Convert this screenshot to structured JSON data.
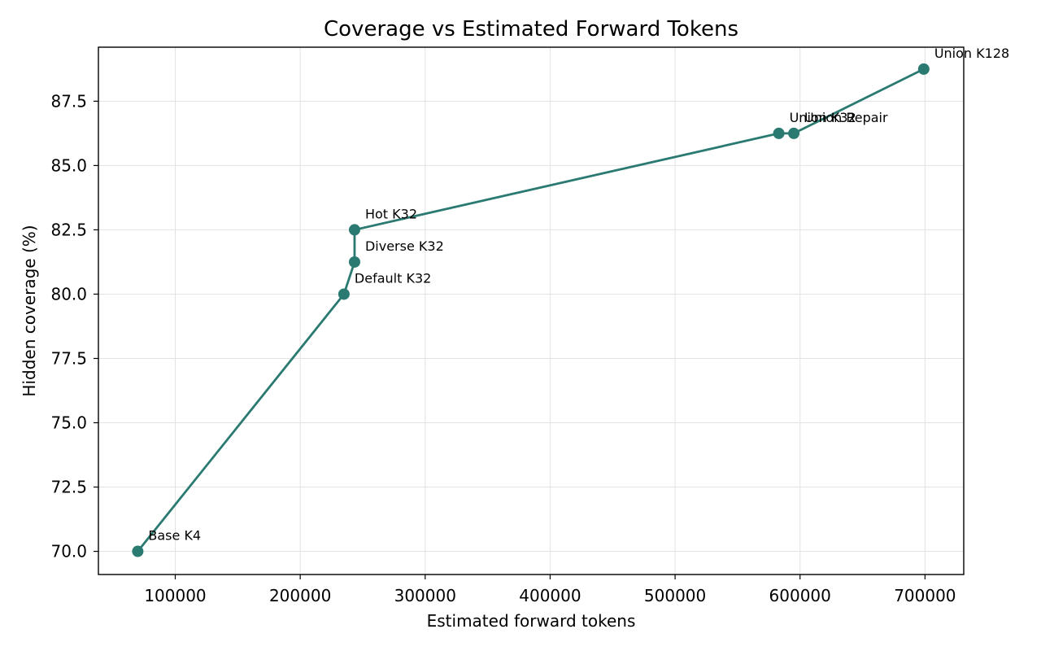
{
  "chart_data": {
    "type": "line",
    "title": "Coverage vs Estimated Forward Tokens",
    "xlabel": "Estimated forward tokens",
    "ylabel": "Hidden coverage (%)",
    "xlim": [
      38500,
      731000
    ],
    "ylim": [
      69.1,
      89.6
    ],
    "xticks": [
      {
        "value": 100000,
        "label": "100000"
      },
      {
        "value": 200000,
        "label": "200000"
      },
      {
        "value": 300000,
        "label": "300000"
      },
      {
        "value": 400000,
        "label": "400000"
      },
      {
        "value": 500000,
        "label": "500000"
      },
      {
        "value": 600000,
        "label": "600000"
      },
      {
        "value": 700000,
        "label": "700000"
      }
    ],
    "yticks": [
      {
        "value": 70.0,
        "label": "70.0"
      },
      {
        "value": 72.5,
        "label": "72.5"
      },
      {
        "value": 75.0,
        "label": "75.0"
      },
      {
        "value": 77.5,
        "label": "77.5"
      },
      {
        "value": 80.0,
        "label": "80.0"
      },
      {
        "value": 82.5,
        "label": "82.5"
      },
      {
        "value": 85.0,
        "label": "85.0"
      },
      {
        "value": 87.5,
        "label": "87.5"
      }
    ],
    "grid": true,
    "series": [
      {
        "color": "#2a7a72",
        "points": [
          {
            "x": 70000,
            "y": 70.0,
            "label": "Base K4"
          },
          {
            "x": 235000,
            "y": 80.0,
            "label": "Default K32"
          },
          {
            "x": 243500,
            "y": 81.25,
            "label": "Diverse K32"
          },
          {
            "x": 243500,
            "y": 82.5,
            "label": "Hot K32"
          },
          {
            "x": 583000,
            "y": 86.25,
            "label": "Union K32"
          },
          {
            "x": 595000,
            "y": 86.25,
            "label": "Union Repair"
          },
          {
            "x": 699000,
            "y": 88.75,
            "label": "Union K128"
          }
        ]
      }
    ]
  }
}
